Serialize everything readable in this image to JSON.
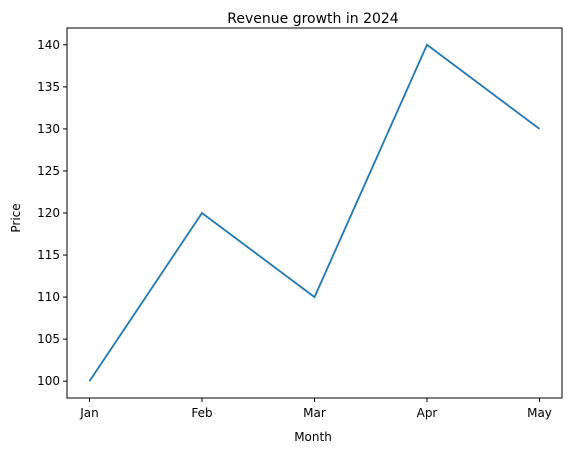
{
  "chart_data": {
    "type": "line",
    "title": "Revenue growth in 2024",
    "xlabel": "Month",
    "ylabel": "Price",
    "categories": [
      "Jan",
      "Feb",
      "Mar",
      "Apr",
      "May"
    ],
    "series": [
      {
        "values": [
          100,
          120,
          110,
          140,
          130
        ],
        "color": "#1f77b4"
      }
    ],
    "ylim": [
      98,
      142
    ],
    "yticks": [
      100,
      105,
      110,
      115,
      120,
      125,
      130,
      135,
      140
    ],
    "grid": false,
    "legend": "none"
  }
}
